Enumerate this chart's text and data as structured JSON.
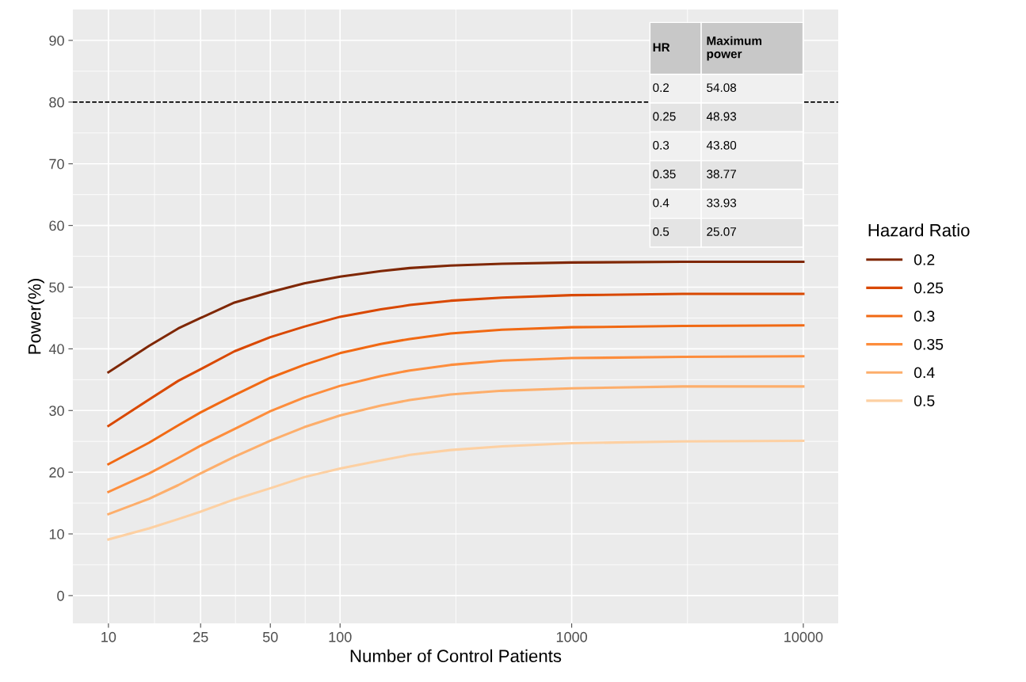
{
  "chart_data": {
    "type": "line",
    "xlabel": "Number of Control Patients",
    "ylabel": "Power(%)",
    "legend_title": "Hazard Ratio",
    "x": [
      10,
      15,
      20,
      25,
      35,
      50,
      70,
      100,
      150,
      200,
      300,
      500,
      1000,
      3000,
      10000
    ],
    "series": [
      {
        "name": "0.2",
        "color": "#7f2704",
        "values": [
          36.2,
          40.5,
          43.3,
          45.0,
          47.5,
          49.2,
          50.6,
          51.7,
          52.6,
          53.1,
          53.5,
          53.8,
          54.0,
          54.1,
          54.1
        ]
      },
      {
        "name": "0.25",
        "color": "#d94801",
        "values": [
          27.5,
          31.8,
          34.8,
          36.7,
          39.6,
          41.9,
          43.6,
          45.2,
          46.4,
          47.1,
          47.8,
          48.3,
          48.7,
          48.9,
          48.9
        ]
      },
      {
        "name": "0.3",
        "color": "#f16913",
        "values": [
          21.3,
          24.8,
          27.6,
          29.7,
          32.5,
          35.3,
          37.4,
          39.3,
          40.8,
          41.6,
          42.5,
          43.1,
          43.5,
          43.7,
          43.8
        ]
      },
      {
        "name": "0.35",
        "color": "#fd8d3c",
        "values": [
          16.8,
          19.8,
          22.3,
          24.3,
          27.0,
          29.9,
          32.1,
          34.0,
          35.6,
          36.5,
          37.4,
          38.1,
          38.5,
          38.7,
          38.8
        ]
      },
      {
        "name": "0.4",
        "color": "#fdae6b",
        "values": [
          13.2,
          15.7,
          17.9,
          19.8,
          22.5,
          25.1,
          27.3,
          29.2,
          30.8,
          31.7,
          32.6,
          33.2,
          33.6,
          33.9,
          33.9
        ]
      },
      {
        "name": "0.5",
        "color": "#fdd0a2",
        "values": [
          9.1,
          10.9,
          12.4,
          13.6,
          15.6,
          17.4,
          19.2,
          20.6,
          21.9,
          22.8,
          23.6,
          24.2,
          24.7,
          25.0,
          25.1
        ]
      }
    ],
    "log": "x",
    "xlim": [
      7.02,
      14150
    ],
    "xticks": [
      10,
      25,
      50,
      100,
      1000,
      10000
    ],
    "ylim": [
      -4.5,
      95
    ],
    "yticks": [
      0,
      10,
      20,
      30,
      40,
      50,
      60,
      70,
      80,
      90
    ],
    "ref_lines": [
      {
        "axis": "y",
        "value": 80,
        "color": "#000000",
        "line_style": "dashed"
      }
    ],
    "annotations": [
      "HR",
      "Maximum\npower",
      "0.2",
      "54.08",
      "0.25",
      "48.93",
      "0.3",
      "43.80",
      "0.35",
      "38.77",
      "0.4",
      "33.93",
      "0.5",
      "25.07"
    ],
    "grid": true,
    "legend": "right",
    "line_style": "solid",
    "marker": "none"
  }
}
